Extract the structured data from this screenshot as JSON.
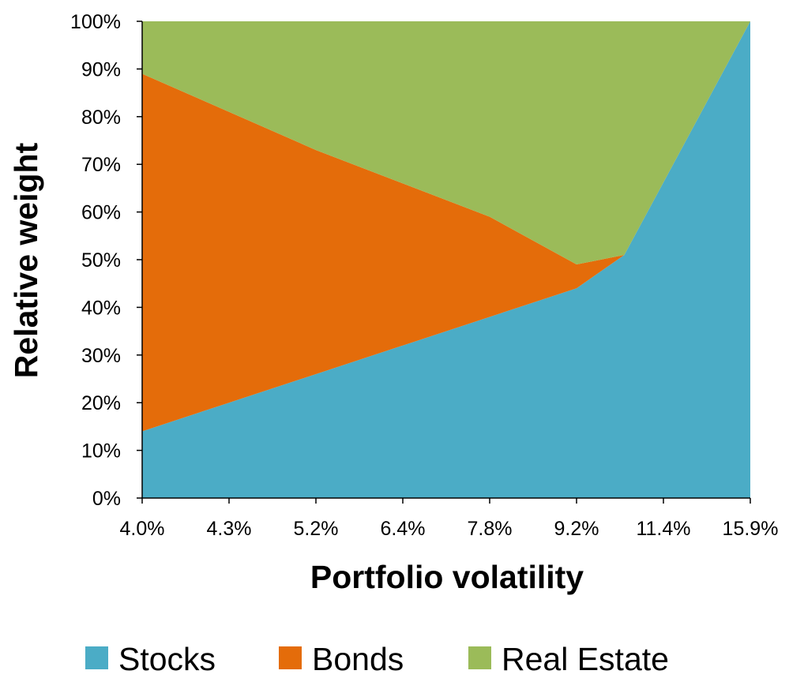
{
  "chart_data": {
    "type": "area",
    "stacked": true,
    "normalized": true,
    "title": "",
    "xlabel": "Portfolio volatility",
    "ylabel": "Relative weight",
    "x_tick_labels": [
      "4.0%",
      "4.3%",
      "5.2%",
      "6.4%",
      "7.8%",
      "9.2%",
      "11.4%",
      "15.9%"
    ],
    "y_tick_labels": [
      "0%",
      "10%",
      "20%",
      "30%",
      "40%",
      "50%",
      "60%",
      "70%",
      "80%",
      "90%",
      "100%"
    ],
    "ylim": [
      0,
      100
    ],
    "x_positions": [
      0,
      1,
      2,
      3,
      4,
      5,
      5.55,
      7
    ],
    "x_range": [
      0,
      7
    ],
    "grid": false,
    "legend_position": "bottom",
    "series": [
      {
        "name": "Stocks",
        "color": "#4BACC6",
        "values": [
          14,
          20,
          26,
          32,
          38,
          44,
          51,
          100
        ]
      },
      {
        "name": "Bonds",
        "color": "#E46C0A",
        "values": [
          75,
          61,
          47,
          34,
          21,
          5,
          0,
          0
        ]
      },
      {
        "name": "Real Estate",
        "color": "#9BBB59",
        "values": [
          11,
          19,
          27,
          34,
          41,
          51,
          49,
          0
        ]
      }
    ]
  }
}
